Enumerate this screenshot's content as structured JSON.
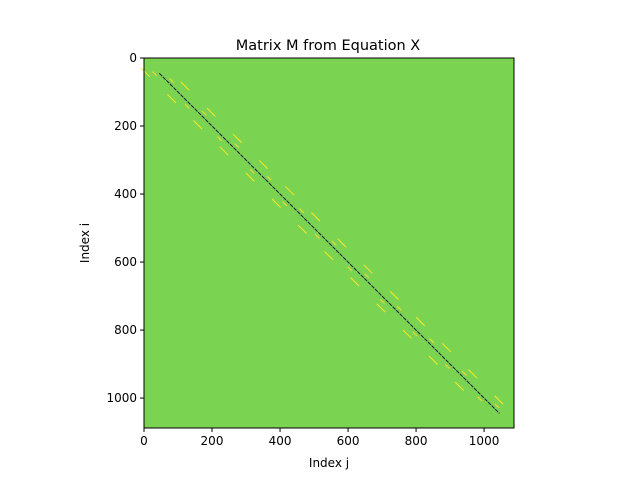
{
  "chart_data": {
    "type": "heatmap",
    "title": "Matrix M from Equation X",
    "xlabel": "Index j",
    "ylabel": "Index i",
    "xlim": [
      0,
      1088
    ],
    "ylim": [
      1088,
      0
    ],
    "xticks": [
      "0",
      "200",
      "400",
      "600",
      "800",
      "1000"
    ],
    "xtick_values": [
      0,
      200,
      400,
      600,
      800,
      1000
    ],
    "yticks": [
      "0",
      "200",
      "400",
      "600",
      "800",
      "1000"
    ],
    "ytick_values": [
      0,
      200,
      400,
      600,
      800,
      1000
    ],
    "grid": false,
    "background_color": "#7ad351",
    "bands": [
      {
        "offset": 0,
        "color": "#1a1a3a",
        "start": 45,
        "end": 1045,
        "dash": 4,
        "gap": 1
      },
      {
        "offset": 38,
        "color": "#fde725",
        "start": 70,
        "end": 1030,
        "dash": 12,
        "gap": 25
      },
      {
        "offset": -38,
        "color": "#fde725",
        "start": 30,
        "end": 990,
        "dash": 12,
        "gap": 25
      },
      {
        "offset": 15,
        "color": "#ffd633",
        "start": 60,
        "end": 1040,
        "dash": 6,
        "gap": 40
      },
      {
        "offset": -15,
        "color": "#ffd633",
        "start": 40,
        "end": 1020,
        "dash": 6,
        "gap": 40
      }
    ]
  }
}
